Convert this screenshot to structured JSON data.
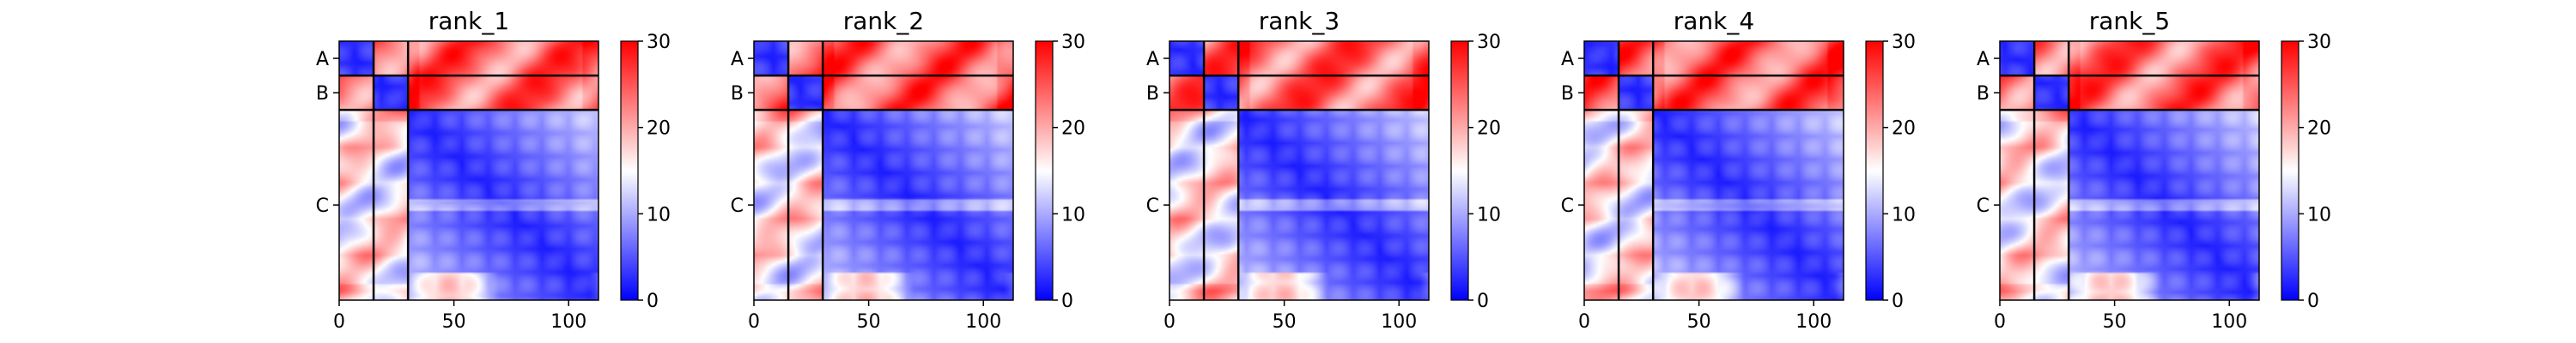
{
  "figure": {
    "scale": {
      "min": 0,
      "max": 30,
      "colors": [
        "#0000ff",
        "#ffffff",
        "#ff0000"
      ]
    },
    "sequence_length": 113,
    "chain_breaks": [
      15,
      30
    ],
    "chain_labels": [
      "A",
      "B",
      "C"
    ],
    "ticks": [
      0,
      50,
      100
    ],
    "colorbar_ticks": [
      0,
      10,
      20,
      30
    ]
  },
  "chart_data": [
    {
      "type": "heatmap",
      "title": "rank_1",
      "xlim": [
        0,
        113
      ],
      "ylim": [
        0,
        113
      ],
      "colorbar_range": [
        0,
        30
      ],
      "x_ticks": [
        0,
        50,
        100
      ],
      "y_tick_labels": [
        "A",
        "B",
        "C"
      ],
      "colorbar_ticks": [
        0,
        10,
        20,
        30
      ],
      "summary": {
        "intra_chain_A": "low (~0-5)",
        "intra_chain_B": "low (~0-5)",
        "intra_chain_C": "low (~0-8)",
        "A_B": "high (~25-30)",
        "A_C": "high (~25-30)",
        "B_C": "high (~25-30)"
      }
    },
    {
      "type": "heatmap",
      "title": "rank_2",
      "xlim": [
        0,
        113
      ],
      "ylim": [
        0,
        113
      ],
      "colorbar_range": [
        0,
        30
      ],
      "x_ticks": [
        0,
        50,
        100
      ],
      "y_tick_labels": [
        "A",
        "B",
        "C"
      ],
      "colorbar_ticks": [
        0,
        10,
        20,
        30
      ],
      "summary": {
        "intra_chain_A": "low (~0-5)",
        "intra_chain_B": "low (~0-5)",
        "intra_chain_C": "low (~0-8)",
        "A_B": "high (~25-30)",
        "A_C": "high (~25-30)",
        "B_C": "high (~25-30)"
      }
    },
    {
      "type": "heatmap",
      "title": "rank_3",
      "xlim": [
        0,
        113
      ],
      "ylim": [
        0,
        113
      ],
      "colorbar_range": [
        0,
        30
      ],
      "x_ticks": [
        0,
        50,
        100
      ],
      "y_tick_labels": [
        "A",
        "B",
        "C"
      ],
      "colorbar_ticks": [
        0,
        10,
        20,
        30
      ],
      "summary": {
        "intra_chain_A": "low (~0-5)",
        "intra_chain_B": "low (~0-5)",
        "intra_chain_C": "low (~0-8)",
        "A_B": "high (~25-30)",
        "A_C": "high (~25-30)",
        "B_C": "high (~25-30)"
      }
    },
    {
      "type": "heatmap",
      "title": "rank_4",
      "xlim": [
        0,
        113
      ],
      "ylim": [
        0,
        113
      ],
      "colorbar_range": [
        0,
        30
      ],
      "x_ticks": [
        0,
        50,
        100
      ],
      "y_tick_labels": [
        "A",
        "B",
        "C"
      ],
      "colorbar_ticks": [
        0,
        10,
        20,
        30
      ],
      "summary": {
        "intra_chain_A": "low (~0-5)",
        "intra_chain_B": "low (~0-5)",
        "intra_chain_C": "low (~0-8)",
        "A_B": "high (~25-30)",
        "A_C": "high (~25-30)",
        "B_C": "high (~25-30)"
      }
    },
    {
      "type": "heatmap",
      "title": "rank_5",
      "xlim": [
        0,
        113
      ],
      "ylim": [
        0,
        113
      ],
      "colorbar_range": [
        0,
        30
      ],
      "x_ticks": [
        0,
        50,
        100
      ],
      "y_tick_labels": [
        "A",
        "B",
        "C"
      ],
      "colorbar_ticks": [
        0,
        10,
        20,
        30
      ],
      "summary": {
        "intra_chain_A": "low (~0-5)",
        "intra_chain_B": "low (~0-5)",
        "intra_chain_C": "low (~0-8)",
        "A_B": "high (~25-30)",
        "A_C": "high (~25-30)",
        "B_C": "high (~25-30)"
      }
    }
  ]
}
